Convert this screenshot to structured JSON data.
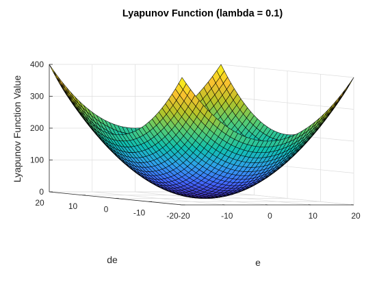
{
  "chart_data": {
    "type": "surface",
    "title": "Lyapunov Function (lambda = 0.1)",
    "xlabel": "e",
    "ylabel": "de",
    "zlabel": "Lyapunov Function Value",
    "xlim": [
      -20,
      20
    ],
    "ylim": [
      -20,
      20
    ],
    "zlim": [
      0,
      400
    ],
    "x_ticks": [
      -20,
      -10,
      0,
      10,
      20
    ],
    "y_ticks": [
      -20,
      -10,
      0,
      10,
      20
    ],
    "z_ticks": [
      0,
      100,
      200,
      300,
      400
    ],
    "x_tick_labels": [
      "-20",
      "-10",
      "0",
      "10",
      "20"
    ],
    "y_tick_labels": [
      "-20",
      "-10",
      "0",
      "10",
      "20"
    ],
    "z_tick_labels": [
      "0",
      "100",
      "200",
      "300",
      "400"
    ],
    "function": "V(e, de) = 0.5*e^2 + 0.5*de^2",
    "grid_points_per_axis": 41,
    "min_value": 0,
    "max_value": 400,
    "corner_values": {
      "e=-20,de=-20": 400,
      "e=20,de=-20": 400,
      "e=-20,de=20": 400,
      "e=20,de=20": 400
    },
    "colormap": [
      "#3e26a8",
      "#4367fd",
      "#2fa1eb",
      "#10bfb0",
      "#55cb74",
      "#b5c327",
      "#f7c12f",
      "#f9fb15"
    ],
    "grid": true,
    "box": false
  }
}
